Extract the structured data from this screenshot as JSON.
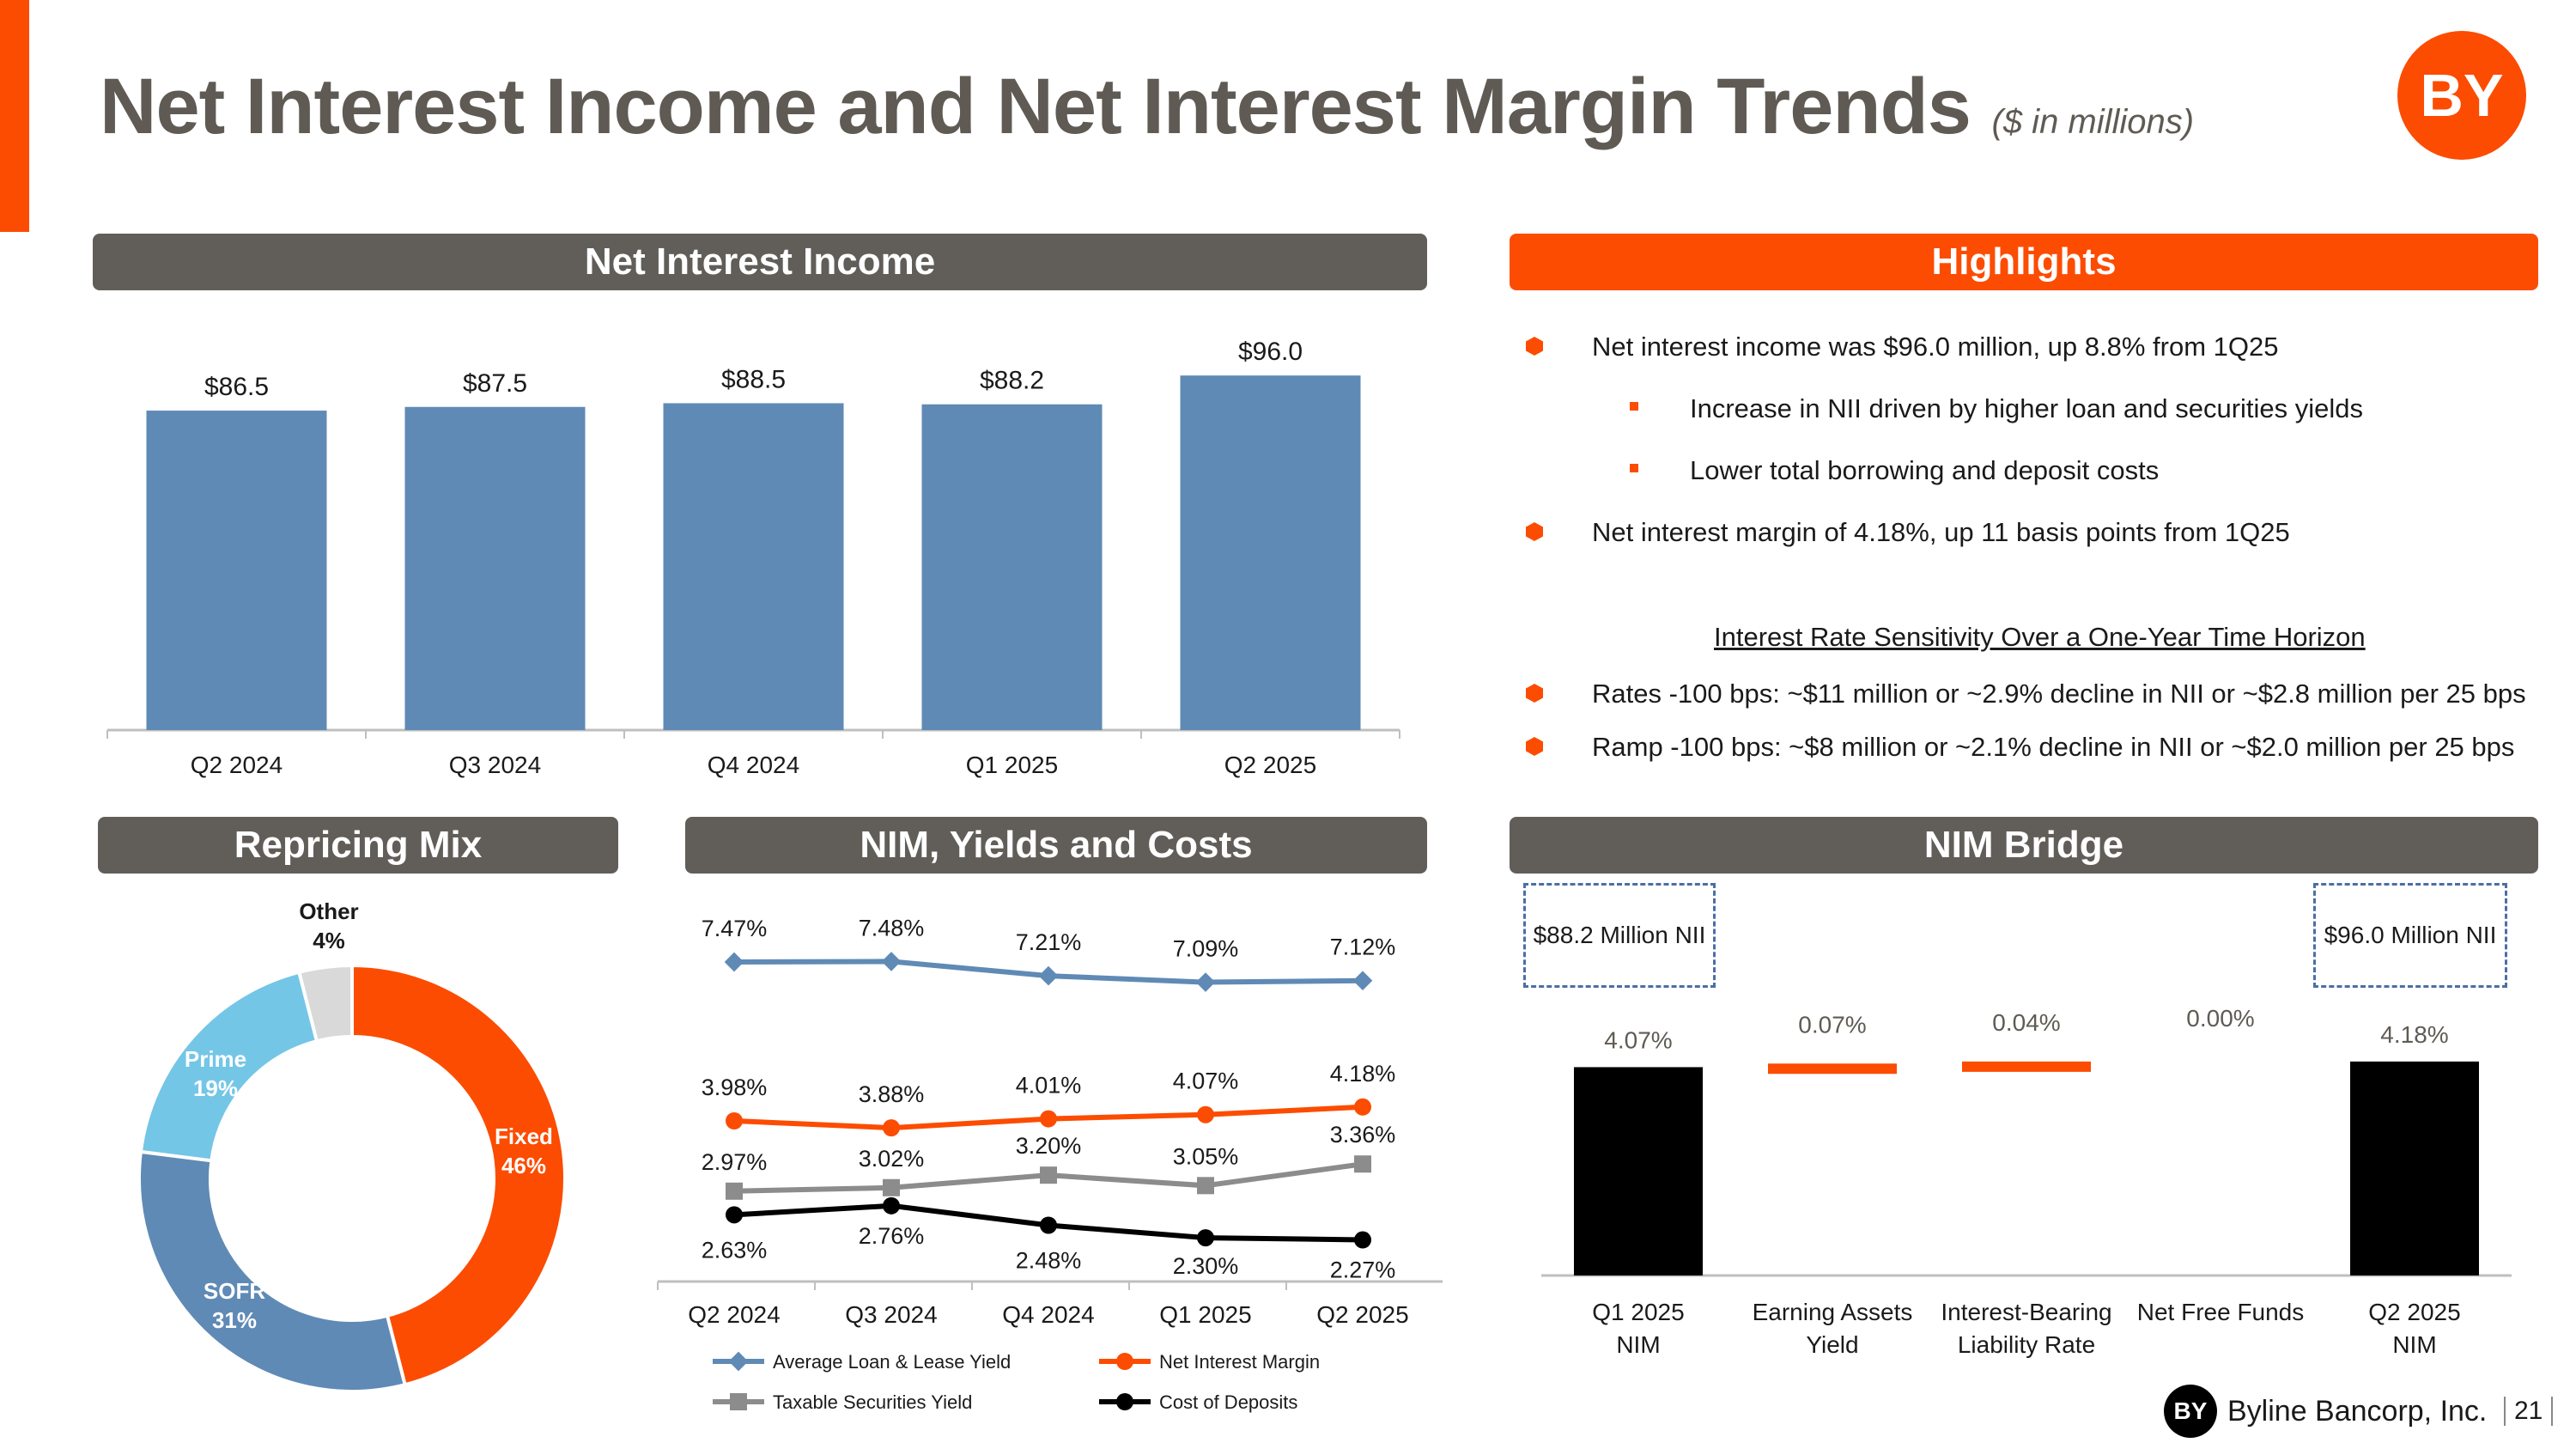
{
  "title": "Net Interest Income and Net Interest Margin Trends",
  "title_sub": "($ in millions)",
  "logo_text": "BY",
  "colors": {
    "accent": "#fc4c02",
    "panel_gray": "#615e59",
    "bar_blue": "#5f8ab5"
  },
  "panels": {
    "nii": "Net Interest Income",
    "highlights": "Highlights",
    "repricing": "Repricing Mix",
    "nim": "NIM, Yields and Costs",
    "bridge": "NIM Bridge"
  },
  "highlights": {
    "items": [
      "Net interest income was $96.0 million, up 8.8% from 1Q25",
      "Increase in NII driven by higher loan and securities yields",
      "Lower total borrowing and deposit costs",
      "Net interest margin of 4.18%, up 11 basis points from 1Q25"
    ],
    "sensitivity_title": "Interest Rate Sensitivity Over a One-Year Time Horizon",
    "sensitivity": [
      "Rates -100 bps: ~$11 million or ~2.9% decline in NII or ~$2.8 million per 25 bps",
      "Ramp -100 bps: ~$8 million or ~2.1% decline in NII or ~$2.0 million per 25 bps"
    ]
  },
  "footer": {
    "company": "Byline Bancorp, Inc.",
    "mark": "BY",
    "page": "21"
  },
  "chart_data": [
    {
      "type": "bar",
      "title": "Net Interest Income",
      "categories": [
        "Q2 2024",
        "Q3 2024",
        "Q4 2024",
        "Q1 2025",
        "Q2 2025"
      ],
      "values": [
        86.5,
        87.5,
        88.5,
        88.2,
        96.0
      ],
      "labels": [
        "$86.5",
        "$87.5",
        "$88.5",
        "$88.2",
        "$96.0"
      ],
      "color": "#5f8ab5"
    },
    {
      "type": "pie",
      "title": "Repricing Mix",
      "slices": [
        {
          "label": "Fixed",
          "value": 46,
          "text": "46%",
          "color": "#fc4c02"
        },
        {
          "label": "SOFR",
          "value": 31,
          "text": "31%",
          "color": "#5f8ab5"
        },
        {
          "label": "Prime",
          "value": 19,
          "text": "19%",
          "color": "#74c6e6"
        },
        {
          "label": "Other",
          "value": 4,
          "text": "4%",
          "color": "#d9d9d9"
        }
      ]
    },
    {
      "type": "line",
      "title": "NIM, Yields and Costs",
      "categories": [
        "Q2 2024",
        "Q3 2024",
        "Q4 2024",
        "Q1 2025",
        "Q2 2025"
      ],
      "series": [
        {
          "name": "Average Loan & Lease Yield",
          "values": [
            7.47,
            7.48,
            7.21,
            7.09,
            7.12
          ],
          "labels": [
            "7.47%",
            "7.48%",
            "7.21%",
            "7.09%",
            "7.12%"
          ],
          "color": "#5f8ab5",
          "marker": "diamond"
        },
        {
          "name": "Net Interest Margin",
          "values": [
            3.98,
            3.88,
            4.01,
            4.07,
            4.18
          ],
          "labels": [
            "3.98%",
            "3.88%",
            "4.01%",
            "4.07%",
            "4.18%"
          ],
          "color": "#fc4c02",
          "marker": "circle"
        },
        {
          "name": "Taxable Securities Yield",
          "values": [
            2.97,
            3.02,
            3.2,
            3.05,
            3.36
          ],
          "labels": [
            "2.97%",
            "3.02%",
            "3.20%",
            "3.05%",
            "3.36%"
          ],
          "color": "#8c8c8c",
          "marker": "square"
        },
        {
          "name": "Cost of Deposits",
          "values": [
            2.63,
            2.76,
            2.48,
            2.3,
            2.27
          ],
          "labels": [
            "2.63%",
            "2.76%",
            "2.48%",
            "2.30%",
            "2.27%"
          ],
          "color": "#000000",
          "marker": "circle"
        }
      ]
    },
    {
      "type": "bar",
      "title": "NIM Bridge",
      "categories": [
        "Q1 2025 NIM",
        "Earning Assets Yield",
        "Interest-Bearing Liability Rate",
        "Net Free Funds",
        "Q2 2025 NIM"
      ],
      "values": [
        4.07,
        0.07,
        0.04,
        0.0,
        4.18
      ],
      "labels": [
        "4.07%",
        "0.07%",
        "0.04%",
        "0.00%",
        "4.18%"
      ],
      "kinds": [
        "total",
        "change",
        "change",
        "change",
        "total"
      ],
      "annotations": [
        "$88.2 Million NII",
        "$96.0 Million NII"
      ]
    }
  ]
}
